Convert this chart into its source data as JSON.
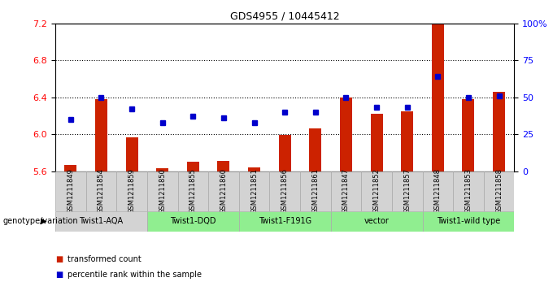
{
  "title": "GDS4955 / 10445412",
  "samples": [
    "GSM1211849",
    "GSM1211854",
    "GSM1211859",
    "GSM1211850",
    "GSM1211855",
    "GSM1211860",
    "GSM1211851",
    "GSM1211856",
    "GSM1211861",
    "GSM1211847",
    "GSM1211852",
    "GSM1211857",
    "GSM1211848",
    "GSM1211853",
    "GSM1211858"
  ],
  "bar_values": [
    5.67,
    6.38,
    5.97,
    5.63,
    5.7,
    5.71,
    5.64,
    5.99,
    6.06,
    6.4,
    6.22,
    6.25,
    7.2,
    6.38,
    6.46
  ],
  "percentile_values": [
    35,
    50,
    42,
    33,
    37,
    36,
    33,
    40,
    40,
    50,
    43,
    43,
    64,
    50,
    51
  ],
  "ylim_left": [
    5.6,
    7.2
  ],
  "ylim_right": [
    0,
    100
  ],
  "yticks_left": [
    5.6,
    6.0,
    6.4,
    6.8,
    7.2
  ],
  "yticks_right": [
    0,
    25,
    50,
    75,
    100
  ],
  "hlines": [
    6.0,
    6.4,
    6.8
  ],
  "bar_color": "#cc2200",
  "percentile_color": "#0000cc",
  "bar_bottom": 5.6,
  "groups": [
    {
      "label": "Twist1-AQA",
      "start": 0,
      "end": 3,
      "color": "#d3d3d3"
    },
    {
      "label": "Twist1-DQD",
      "start": 3,
      "end": 6,
      "color": "#90EE90"
    },
    {
      "label": "Twist1-F191G",
      "start": 6,
      "end": 9,
      "color": "#90EE90"
    },
    {
      "label": "vector",
      "start": 9,
      "end": 12,
      "color": "#90EE90"
    },
    {
      "label": "Twist1-wild type",
      "start": 12,
      "end": 15,
      "color": "#90EE90"
    }
  ],
  "genotype_label": "genotype/variation",
  "legend_items": [
    {
      "label": "transformed count",
      "color": "#cc2200"
    },
    {
      "label": "percentile rank within the sample",
      "color": "#0000cc"
    }
  ]
}
